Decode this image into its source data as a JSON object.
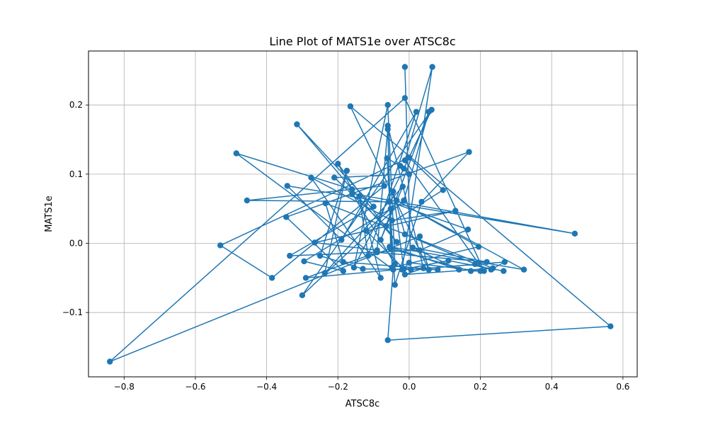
{
  "chart_data": {
    "type": "line",
    "title": "Line Plot of MATS1e over ATSC8c",
    "xlabel": "ATSC8c",
    "ylabel": "MATS1e",
    "xlim": [
      -0.9,
      0.64
    ],
    "ylim": [
      -0.193,
      0.278
    ],
    "xticks": [
      -0.8,
      -0.6,
      -0.4,
      -0.2,
      0.0,
      0.2,
      0.4,
      0.6
    ],
    "xtick_labels": [
      "−0.8",
      "−0.6",
      "−0.4",
      "−0.2",
      "0.0",
      "0.2",
      "0.4",
      "0.6"
    ],
    "yticks": [
      -0.1,
      0.0,
      0.1,
      0.2
    ],
    "ytick_labels": [
      "−0.1",
      "0.0",
      "0.1",
      "0.2"
    ],
    "grid": true,
    "color": "#1f77b4",
    "marker": "circle",
    "series": [
      {
        "name": "",
        "points": [
          [
            -0.012,
            0.255
          ],
          [
            0.005,
            -0.038
          ],
          [
            0.268,
            -0.027
          ],
          [
            0.23,
            -0.038
          ],
          [
            0.185,
            -0.03
          ],
          [
            -0.012,
            0.013
          ],
          [
            -0.045,
            0.075
          ],
          [
            -0.015,
            -0.037
          ],
          [
            0.0,
            -0.028
          ],
          [
            0.2,
            -0.04
          ],
          [
            0.173,
            -0.04
          ],
          [
            -0.052,
            -0.008
          ],
          [
            -0.06,
            0.17
          ],
          [
            0.04,
            -0.036
          ],
          [
            -0.012,
            -0.045
          ],
          [
            0.235,
            -0.036
          ],
          [
            -0.235,
            0.058
          ],
          [
            -0.185,
            -0.027
          ],
          [
            0.08,
            -0.038
          ],
          [
            -0.13,
            -0.037
          ],
          [
            -0.25,
            -0.018
          ],
          [
            -0.175,
            0.105
          ],
          [
            -0.237,
            -0.043
          ],
          [
            -0.018,
            0.082
          ],
          [
            -0.08,
            0.005
          ],
          [
            0.055,
            0.19
          ],
          [
            -0.015,
            0.062
          ],
          [
            -0.3,
            -0.075
          ],
          [
            0.063,
            0.193
          ],
          [
            -0.015,
            0.108
          ],
          [
            -0.155,
            -0.035
          ],
          [
            -0.06,
            0.2
          ],
          [
            -0.04,
            -0.03
          ],
          [
            -0.16,
            0.072
          ],
          [
            0.465,
            0.014
          ],
          [
            -0.342,
            0.083
          ],
          [
            -0.19,
            0.005
          ],
          [
            0.02,
            0.19
          ],
          [
            -0.115,
            -0.018
          ],
          [
            -0.14,
            0.068
          ],
          [
            -0.08,
            -0.05
          ],
          [
            -0.275,
            0.095
          ],
          [
            -0.048,
            0.033
          ],
          [
            0.13,
            0.047
          ],
          [
            -0.265,
            0.001
          ],
          [
            -0.09,
            -0.01
          ],
          [
            -0.06,
            0.165
          ],
          [
            -0.048,
            -0.035
          ],
          [
            0.195,
            -0.005
          ],
          [
            -0.035,
            0.062
          ],
          [
            0.322,
            -0.038
          ],
          [
            -0.055,
            -0.005
          ],
          [
            0.14,
            -0.038
          ],
          [
            0.01,
            -0.006
          ],
          [
            0.218,
            -0.027
          ],
          [
            -0.09,
            -0.013
          ],
          [
            -0.29,
            -0.05
          ],
          [
            -0.015,
            -0.037
          ],
          [
            -0.12,
            0.018
          ],
          [
            -0.052,
            0.05
          ],
          [
            -0.295,
            -0.026
          ],
          [
            -0.185,
            -0.04
          ],
          [
            -0.345,
            0.038
          ],
          [
            0.168,
            0.132
          ],
          [
            0.035,
            0.06
          ],
          [
            -0.04,
            -0.06
          ],
          [
            -0.062,
            0.123
          ],
          [
            -0.025,
            0.112
          ],
          [
            0.0,
            0.1
          ],
          [
            -0.21,
            0.095
          ],
          [
            -0.065,
            0.025
          ],
          [
            0.095,
            0.077
          ],
          [
            0.0,
            0.124
          ],
          [
            -0.53,
            -0.003
          ],
          [
            -0.385,
            -0.05
          ],
          [
            -0.07,
            0.083
          ],
          [
            -0.455,
            0.062
          ],
          [
            -0.055,
            0.06
          ],
          [
            0.165,
            0.02
          ],
          [
            0.03,
            -0.01
          ],
          [
            -0.335,
            -0.018
          ],
          [
            -0.1,
            0.053
          ],
          [
            -0.315,
            0.172
          ],
          [
            -0.035,
            0.002
          ],
          [
            -0.2,
            0.115
          ],
          [
            -0.16,
            0.078
          ],
          [
            -0.485,
            0.13
          ],
          [
            -0.045,
            -0.038
          ],
          [
            -0.06,
            -0.14
          ],
          [
            0.565,
            -0.12
          ],
          [
            -0.165,
            0.198
          ],
          [
            0.055,
            -0.038
          ],
          [
            0.03,
            0.01
          ],
          [
            -0.84,
            -0.171
          ],
          [
            -0.012,
            0.21
          ],
          [
            0.21,
            -0.04
          ],
          [
            -0.012,
            0.12
          ],
          [
            0.065,
            0.255
          ],
          [
            -0.02,
            -0.038
          ],
          [
            0.11,
            -0.025
          ],
          [
            0.265,
            -0.04
          ]
        ]
      }
    ]
  }
}
